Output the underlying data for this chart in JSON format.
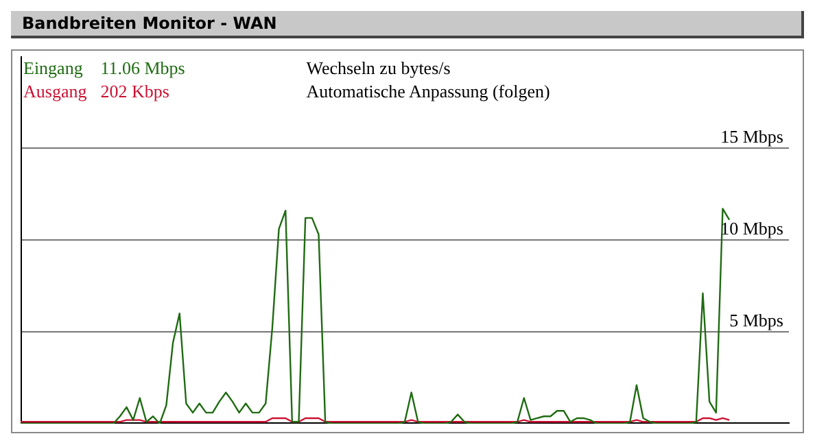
{
  "chart_data": {
    "type": "line",
    "title": "Bandbreiten Monitor - WAN",
    "annotations": [
      "11.06 Mbps",
      "202 Kbps",
      "Wechseln zu bytes/s",
      "Automatische Anpassung (folgen)"
    ],
    "categories": [
      null,
      null,
      null,
      null,
      null,
      null,
      null,
      null,
      null,
      null,
      null,
      null,
      null,
      null,
      null,
      null,
      null,
      null,
      null,
      null,
      null,
      null,
      null,
      null,
      null,
      null,
      null,
      null,
      null,
      null,
      null,
      null,
      null,
      null,
      null,
      null,
      null,
      null,
      null,
      null,
      null,
      null,
      null,
      null,
      null,
      null,
      null,
      null,
      null,
      null,
      null,
      null,
      null,
      null,
      null,
      null,
      null,
      null,
      null,
      null,
      null,
      null,
      null,
      null,
      null,
      null,
      null,
      null,
      null,
      null,
      null,
      null,
      null,
      null,
      null,
      null,
      null,
      null,
      null,
      null,
      null,
      null,
      null,
      null,
      null,
      null,
      null,
      null,
      null,
      null,
      null,
      null,
      null,
      null,
      null,
      null,
      null,
      null,
      null,
      null,
      null,
      null,
      null,
      null,
      null,
      null,
      null,
      null,
      null,
      null,
      null,
      null,
      null,
      null,
      null,
      null,
      null
    ],
    "series": [
      {
        "name": "Eingang",
        "color": "#1f6b12",
        "values": [
          0,
          0,
          0,
          0,
          0,
          0,
          0,
          0,
          0,
          0,
          0,
          0,
          0,
          0,
          0,
          0.4,
          0.9,
          0.2,
          1.4,
          0.1,
          0.4,
          0,
          1.0,
          4.4,
          6.0,
          1.1,
          0.6,
          1.1,
          0.6,
          0.6,
          1.2,
          1.7,
          1.2,
          0.6,
          1.1,
          0.6,
          0.6,
          1.1,
          5.2,
          10.6,
          11.6,
          0.1,
          0.1,
          11.2,
          11.2,
          10.3,
          0.1,
          0,
          0,
          0,
          0,
          0,
          0,
          0,
          0,
          0,
          0,
          0,
          0.1,
          1.7,
          0.1,
          0,
          0,
          0,
          0,
          0.1,
          0.5,
          0.1,
          0,
          0,
          0,
          0,
          0,
          0,
          0,
          0.1,
          1.4,
          0.2,
          0.3,
          0.4,
          0.4,
          0.7,
          0.7,
          0.1,
          0.3,
          0.3,
          0.2,
          0,
          0,
          0,
          0,
          0,
          0.1,
          2.1,
          0.3,
          0.1,
          0,
          0,
          0,
          0,
          0,
          0,
          0.1,
          7.1,
          1.2,
          0.6,
          11.7,
          11.1,
          null,
          null,
          null,
          null,
          null,
          null,
          null,
          null,
          null
        ]
      },
      {
        "name": "Ausgang",
        "color": "#cc1133",
        "values": [
          0.1,
          0.1,
          0.1,
          0.1,
          0.1,
          0.1,
          0.1,
          0.1,
          0.1,
          0.1,
          0.1,
          0.1,
          0.1,
          0.1,
          0.1,
          0.1,
          0.2,
          0.2,
          0.2,
          0.1,
          0.1,
          0.1,
          0.1,
          0.1,
          0.1,
          0.1,
          0.1,
          0.1,
          0.1,
          0.1,
          0.1,
          0.1,
          0.1,
          0.1,
          0.1,
          0.1,
          0.1,
          0.1,
          0.3,
          0.3,
          0.3,
          0.1,
          0.1,
          0.3,
          0.3,
          0.3,
          0.1,
          0.1,
          0.1,
          0.1,
          0.1,
          0.1,
          0.1,
          0.1,
          0.1,
          0.1,
          0.1,
          0.1,
          0.1,
          0.2,
          0.1,
          0.1,
          0.1,
          0.1,
          0.1,
          0.1,
          0.1,
          0.1,
          0.1,
          0.1,
          0.1,
          0.1,
          0.1,
          0.1,
          0.1,
          0.1,
          0.2,
          0.1,
          0.1,
          0.1,
          0.1,
          0.1,
          0.1,
          0.1,
          0.1,
          0.1,
          0.1,
          0.1,
          0.1,
          0.1,
          0.1,
          0.1,
          0.1,
          0.2,
          0.1,
          0.1,
          0.1,
          0.1,
          0.1,
          0.1,
          0.1,
          0.1,
          0.1,
          0.3,
          0.3,
          0.2,
          0.3,
          0.2,
          null,
          null,
          null,
          null,
          null,
          null,
          null,
          null,
          null
        ]
      }
    ],
    "ylim": [
      0,
      20
    ],
    "yticks": [
      {
        "value": 5,
        "label": "5 Mbps"
      },
      {
        "value": 10,
        "label": "10 Mbps"
      },
      {
        "value": 15,
        "label": "15 Mbps"
      }
    ],
    "grid": "y",
    "legend": "top left",
    "marker": "none",
    "line_style": "solid",
    "tick_labels": "y"
  }
}
